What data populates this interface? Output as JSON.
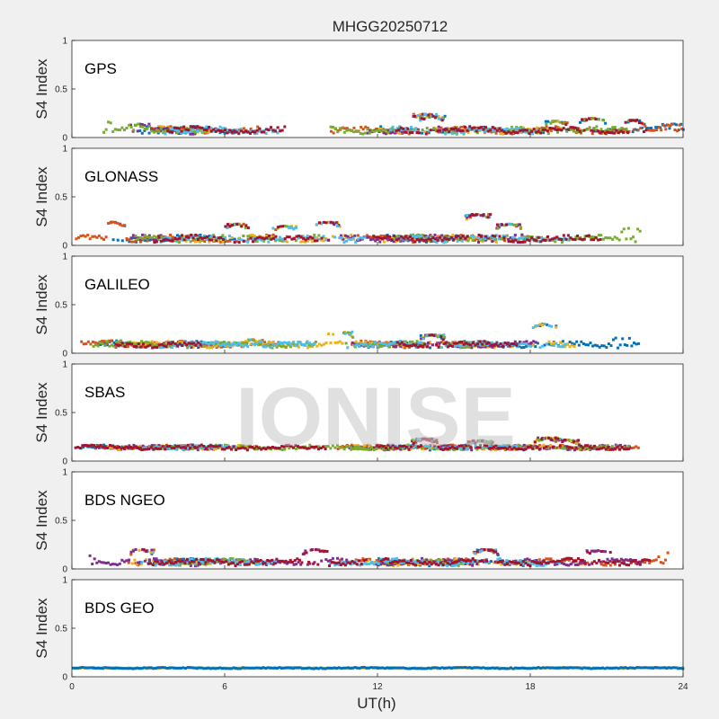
{
  "figure": {
    "title": "MHGG20250712",
    "xlabel": "UT(h)",
    "watermark": "IONISE"
  },
  "chart_data": {
    "type": "scatter",
    "x_range": [
      0,
      24
    ],
    "x_ticks": [
      "0",
      "6",
      "12",
      "18",
      "24"
    ],
    "y_range": [
      0,
      1
    ],
    "y_ticks": [
      "0",
      "0.5",
      "1"
    ],
    "ylabel": "S4 Index",
    "grid": false,
    "series_colors": [
      "#0072BD",
      "#D95319",
      "#EDB120",
      "#7E2F8E",
      "#77AC30",
      "#4DBEEE",
      "#A2142F"
    ],
    "panels": [
      {
        "label": "GPS",
        "baseline": 0.075,
        "spread": 0.05,
        "bumps": [
          [
            1.0,
            0.16
          ],
          [
            2.6,
            0.14
          ],
          [
            9.5,
            0.15
          ],
          [
            13.8,
            0.24
          ],
          [
            14.1,
            0.22
          ],
          [
            19.0,
            0.17
          ],
          [
            20.4,
            0.2
          ],
          [
            22.0,
            0.18
          ],
          [
            23.6,
            0.14
          ]
        ]
      },
      {
        "label": "GLONASS",
        "baseline": 0.07,
        "spread": 0.05,
        "bumps": [
          [
            1.6,
            0.24
          ],
          [
            6.4,
            0.22
          ],
          [
            8.3,
            0.2
          ],
          [
            10.0,
            0.24
          ],
          [
            15.9,
            0.32
          ],
          [
            17.1,
            0.22
          ],
          [
            21.9,
            0.18
          ],
          [
            23.2,
            0.22
          ],
          [
            23.8,
            0.2
          ]
        ]
      },
      {
        "label": "GALILEO",
        "baseline": 0.09,
        "spread": 0.045,
        "bumps": [
          [
            1.5,
            0.13
          ],
          [
            7.0,
            0.14
          ],
          [
            10.5,
            0.22
          ],
          [
            14.1,
            0.19
          ],
          [
            18.5,
            0.3
          ],
          [
            21.4,
            0.16
          ],
          [
            23.4,
            0.12
          ]
        ]
      },
      {
        "label": "SBAS",
        "baseline": 0.14,
        "spread": 0.035,
        "bumps": [
          [
            13.8,
            0.23
          ],
          [
            16.0,
            0.21
          ],
          [
            18.6,
            0.24
          ],
          [
            19.4,
            0.22
          ]
        ]
      },
      {
        "label": "BDS NGEO",
        "baseline": 0.07,
        "spread": 0.05,
        "bumps": [
          [
            0.4,
            0.15
          ],
          [
            2.7,
            0.2
          ],
          [
            9.5,
            0.2
          ],
          [
            16.2,
            0.2
          ],
          [
            20.6,
            0.19
          ],
          [
            23.4,
            0.17
          ]
        ]
      },
      {
        "label": "BDS GEO",
        "baseline": 0.09,
        "spread": 0.01,
        "geo": true,
        "bumps": []
      }
    ]
  }
}
